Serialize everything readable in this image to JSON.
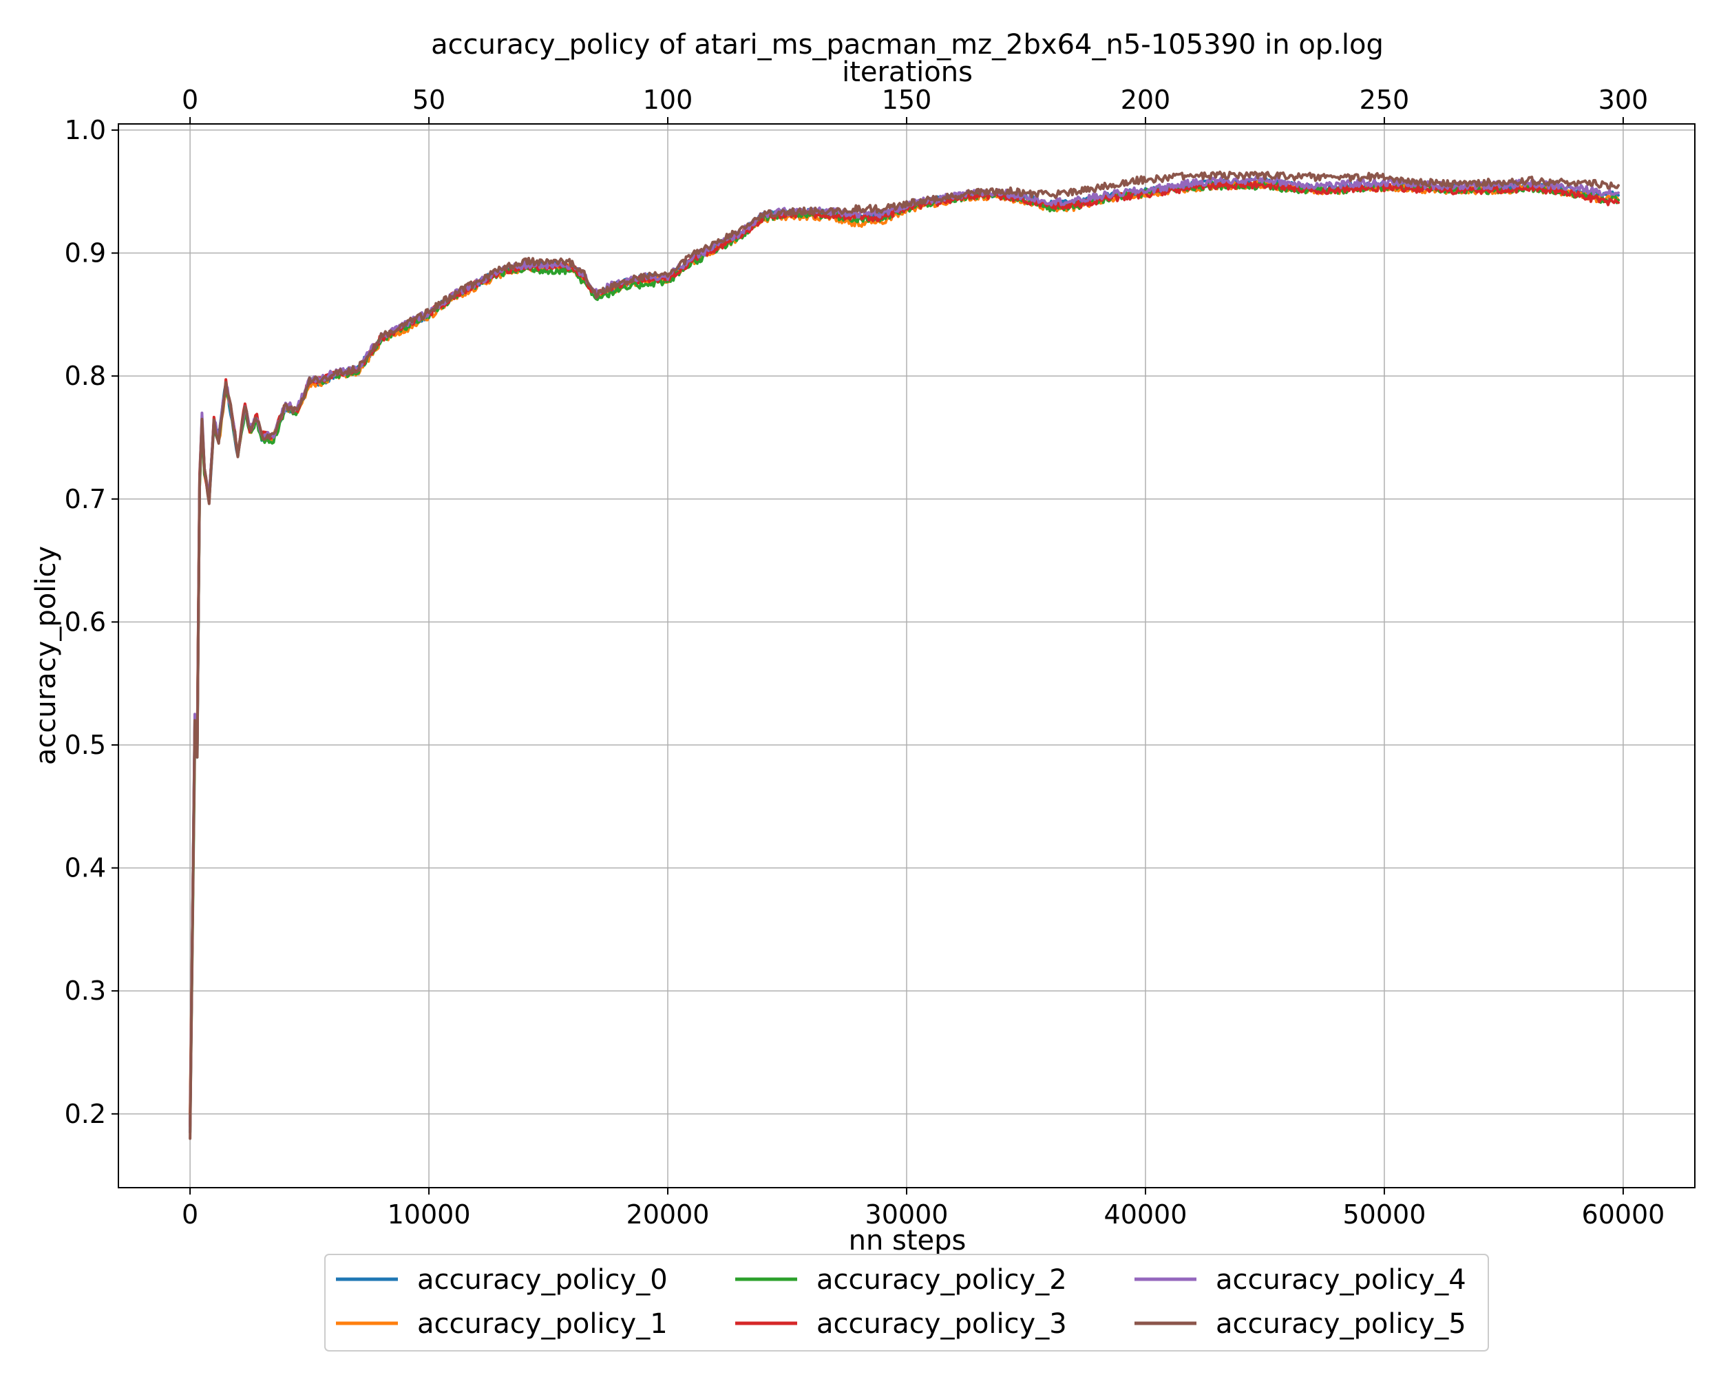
{
  "chart_data": {
    "type": "line",
    "title": "accuracy_policy of atari_ms_pacman_mz_2bx64_n5-105390 in op.log",
    "xlabel": "nn steps",
    "ylabel": "accuracy_policy",
    "x2label": "iterations",
    "xlim": [
      -3000,
      63000
    ],
    "ylim": [
      0.14,
      1.005
    ],
    "x2lim": [
      -15,
      315
    ],
    "xticks": [
      0,
      10000,
      20000,
      30000,
      40000,
      50000,
      60000
    ],
    "xtick_labels": [
      "0",
      "10000",
      "20000",
      "30000",
      "40000",
      "50000",
      "60000"
    ],
    "x2ticks": [
      0,
      50,
      100,
      150,
      200,
      250,
      300
    ],
    "x2tick_labels": [
      "0",
      "50",
      "100",
      "150",
      "200",
      "250",
      "300"
    ],
    "yticks": [
      0.2,
      0.3,
      0.4,
      0.5,
      0.6,
      0.7,
      0.8,
      0.9,
      1.0
    ],
    "ytick_labels": [
      "0.2",
      "0.3",
      "0.4",
      "0.5",
      "0.6",
      "0.7",
      "0.8",
      "0.9",
      "1.0"
    ],
    "grid": true,
    "legend_position": "bottom-center, below axes, 3 columns",
    "x": [
      0,
      200,
      300,
      400,
      500,
      600,
      800,
      1000,
      1200,
      1500,
      1700,
      2000,
      2300,
      2500,
      2800,
      3000,
      3500,
      4000,
      4500,
      5000,
      5500,
      6000,
      7000,
      8000,
      9000,
      10000,
      11000,
      12000,
      13000,
      14000,
      15000,
      16000,
      16500,
      17000,
      18000,
      19000,
      20000,
      21000,
      22000,
      23000,
      24000,
      25000,
      26000,
      27000,
      28000,
      29000,
      30000,
      31000,
      32000,
      33000,
      34000,
      35000,
      36000,
      37000,
      38000,
      39000,
      40000,
      41000,
      42000,
      43000,
      44000,
      45000,
      46000,
      47000,
      48000,
      49000,
      50000,
      51000,
      52000,
      53000,
      54000,
      55000,
      56000,
      57000,
      58000,
      59000,
      59800
    ],
    "series": [
      {
        "name": "accuracy_policy_0",
        "color": "#1f77b4",
        "values": [
          0.19,
          0.52,
          0.49,
          0.715,
          0.76,
          0.725,
          0.7,
          0.76,
          0.75,
          0.795,
          0.77,
          0.735,
          0.775,
          0.755,
          0.765,
          0.75,
          0.75,
          0.775,
          0.77,
          0.795,
          0.795,
          0.8,
          0.805,
          0.83,
          0.84,
          0.85,
          0.865,
          0.875,
          0.885,
          0.89,
          0.89,
          0.89,
          0.88,
          0.865,
          0.875,
          0.88,
          0.88,
          0.895,
          0.905,
          0.915,
          0.93,
          0.933,
          0.933,
          0.932,
          0.93,
          0.93,
          0.938,
          0.942,
          0.945,
          0.948,
          0.948,
          0.945,
          0.94,
          0.94,
          0.945,
          0.948,
          0.95,
          0.953,
          0.955,
          0.957,
          0.957,
          0.958,
          0.955,
          0.953,
          0.953,
          0.955,
          0.955,
          0.955,
          0.953,
          0.953,
          0.953,
          0.953,
          0.955,
          0.953,
          0.952,
          0.948,
          0.947
        ]
      },
      {
        "name": "accuracy_policy_1",
        "color": "#ff7f0e",
        "values": [
          0.2,
          0.51,
          0.5,
          0.71,
          0.765,
          0.72,
          0.7,
          0.765,
          0.745,
          0.79,
          0.775,
          0.735,
          0.775,
          0.755,
          0.765,
          0.75,
          0.75,
          0.775,
          0.77,
          0.793,
          0.795,
          0.8,
          0.803,
          0.828,
          0.838,
          0.848,
          0.863,
          0.873,
          0.883,
          0.888,
          0.888,
          0.888,
          0.878,
          0.865,
          0.872,
          0.878,
          0.878,
          0.893,
          0.903,
          0.913,
          0.928,
          0.93,
          0.93,
          0.928,
          0.924,
          0.926,
          0.935,
          0.94,
          0.943,
          0.946,
          0.946,
          0.942,
          0.937,
          0.937,
          0.942,
          0.946,
          0.948,
          0.951,
          0.953,
          0.955,
          0.955,
          0.956,
          0.953,
          0.951,
          0.951,
          0.953,
          0.953,
          0.953,
          0.951,
          0.951,
          0.951,
          0.951,
          0.953,
          0.951,
          0.948,
          0.944,
          0.943
        ]
      },
      {
        "name": "accuracy_policy_2",
        "color": "#2ca02c",
        "values": [
          0.185,
          0.5,
          0.495,
          0.71,
          0.76,
          0.72,
          0.7,
          0.76,
          0.748,
          0.792,
          0.772,
          0.733,
          0.772,
          0.753,
          0.763,
          0.748,
          0.748,
          0.773,
          0.77,
          0.796,
          0.795,
          0.8,
          0.804,
          0.83,
          0.84,
          0.85,
          0.864,
          0.874,
          0.884,
          0.887,
          0.886,
          0.886,
          0.876,
          0.864,
          0.87,
          0.875,
          0.877,
          0.892,
          0.902,
          0.912,
          0.929,
          0.932,
          0.932,
          0.93,
          0.928,
          0.928,
          0.936,
          0.941,
          0.944,
          0.947,
          0.947,
          0.943,
          0.937,
          0.938,
          0.943,
          0.947,
          0.949,
          0.952,
          0.954,
          0.955,
          0.954,
          0.955,
          0.952,
          0.951,
          0.951,
          0.953,
          0.954,
          0.954,
          0.952,
          0.951,
          0.951,
          0.951,
          0.953,
          0.951,
          0.948,
          0.944,
          0.943
        ]
      },
      {
        "name": "accuracy_policy_3",
        "color": "#d62728",
        "values": [
          0.19,
          0.515,
          0.5,
          0.72,
          0.765,
          0.725,
          0.7,
          0.765,
          0.75,
          0.795,
          0.775,
          0.737,
          0.778,
          0.757,
          0.767,
          0.752,
          0.752,
          0.777,
          0.772,
          0.796,
          0.797,
          0.801,
          0.805,
          0.831,
          0.841,
          0.851,
          0.865,
          0.875,
          0.885,
          0.889,
          0.889,
          0.889,
          0.879,
          0.866,
          0.874,
          0.879,
          0.879,
          0.894,
          0.904,
          0.914,
          0.929,
          0.932,
          0.932,
          0.931,
          0.929,
          0.929,
          0.937,
          0.941,
          0.944,
          0.947,
          0.946,
          0.943,
          0.939,
          0.939,
          0.943,
          0.946,
          0.948,
          0.951,
          0.953,
          0.955,
          0.955,
          0.956,
          0.953,
          0.951,
          0.951,
          0.953,
          0.953,
          0.953,
          0.951,
          0.951,
          0.951,
          0.951,
          0.953,
          0.951,
          0.948,
          0.943,
          0.941
        ]
      },
      {
        "name": "accuracy_policy_4",
        "color": "#9467bd",
        "values": [
          0.185,
          0.525,
          0.495,
          0.715,
          0.77,
          0.725,
          0.702,
          0.765,
          0.75,
          0.795,
          0.775,
          0.737,
          0.777,
          0.757,
          0.767,
          0.752,
          0.752,
          0.777,
          0.774,
          0.797,
          0.798,
          0.802,
          0.806,
          0.832,
          0.842,
          0.852,
          0.866,
          0.876,
          0.886,
          0.89,
          0.89,
          0.89,
          0.881,
          0.868,
          0.877,
          0.881,
          0.881,
          0.896,
          0.906,
          0.916,
          0.931,
          0.934,
          0.934,
          0.934,
          0.932,
          0.932,
          0.939,
          0.943,
          0.946,
          0.949,
          0.949,
          0.946,
          0.942,
          0.942,
          0.946,
          0.949,
          0.951,
          0.954,
          0.957,
          0.959,
          0.959,
          0.96,
          0.957,
          0.955,
          0.955,
          0.957,
          0.957,
          0.957,
          0.955,
          0.955,
          0.955,
          0.955,
          0.957,
          0.955,
          0.953,
          0.95,
          0.949
        ]
      },
      {
        "name": "accuracy_policy_5",
        "color": "#8c564b",
        "values": [
          0.18,
          0.52,
          0.49,
          0.715,
          0.765,
          0.725,
          0.698,
          0.762,
          0.748,
          0.796,
          0.776,
          0.736,
          0.776,
          0.756,
          0.766,
          0.751,
          0.751,
          0.776,
          0.771,
          0.797,
          0.797,
          0.802,
          0.806,
          0.832,
          0.842,
          0.852,
          0.866,
          0.876,
          0.887,
          0.893,
          0.893,
          0.892,
          0.883,
          0.866,
          0.876,
          0.881,
          0.883,
          0.898,
          0.908,
          0.918,
          0.932,
          0.934,
          0.934,
          0.934,
          0.936,
          0.936,
          0.94,
          0.944,
          0.946,
          0.95,
          0.951,
          0.949,
          0.947,
          0.95,
          0.953,
          0.957,
          0.96,
          0.961,
          0.963,
          0.963,
          0.963,
          0.963,
          0.962,
          0.962,
          0.961,
          0.962,
          0.962,
          0.959,
          0.957,
          0.956,
          0.957,
          0.958,
          0.959,
          0.958,
          0.957,
          0.956,
          0.955
        ]
      }
    ]
  }
}
